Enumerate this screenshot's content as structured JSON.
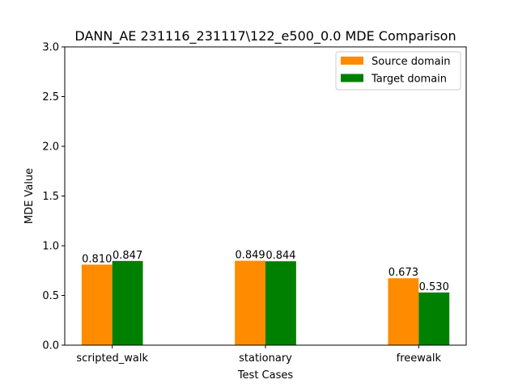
{
  "chart_data": {
    "type": "bar",
    "title": "DANN_AE 231116_231117\\122_e500_0.0 MDE Comparison",
    "xlabel": "Test Cases",
    "ylabel": "MDE Value",
    "categories": [
      "scripted_walk",
      "stationary",
      "freewalk"
    ],
    "series": [
      {
        "name": "Source domain",
        "color": "#ff8c00",
        "values": [
          0.81,
          0.849,
          0.673
        ],
        "labels": [
          "0.810",
          "0.849",
          "0.673"
        ]
      },
      {
        "name": "Target domain",
        "color": "#008000",
        "values": [
          0.847,
          0.844,
          0.53
        ],
        "labels": [
          "0.847",
          "0.844",
          "0.530"
        ]
      }
    ],
    "ylim": [
      0,
      3.0
    ],
    "yticks": [
      0.0,
      0.5,
      1.0,
      1.5,
      2.0,
      2.5,
      3.0
    ],
    "ytick_labels": [
      "0.0",
      "0.5",
      "1.0",
      "1.5",
      "2.0",
      "2.5",
      "3.0"
    ],
    "grid": false,
    "legend_position": "top-right"
  }
}
